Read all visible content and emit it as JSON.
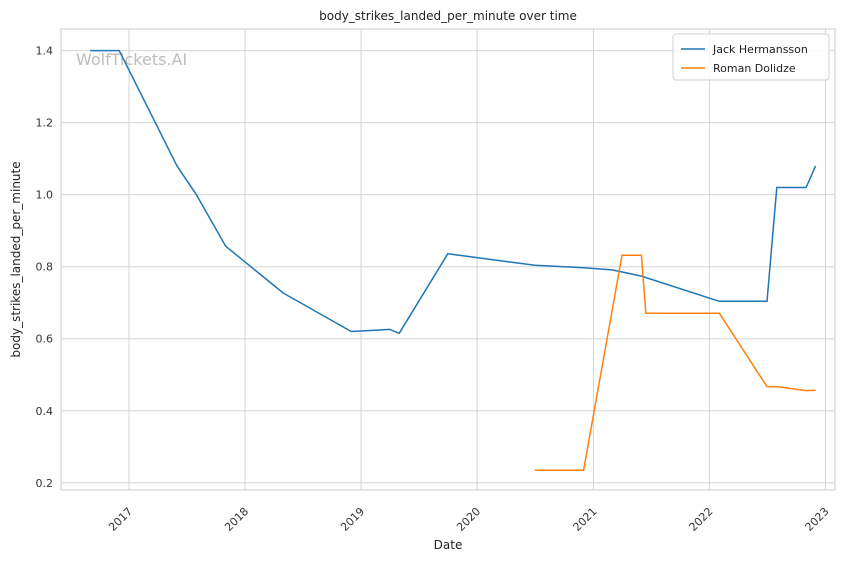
{
  "chart_data": {
    "type": "line",
    "title": "body_strikes_landed_per_minute over time",
    "xlabel": "Date",
    "ylabel": "body_strikes_landed_per_minute",
    "watermark": "WolfTickets.AI",
    "x_axis": "date",
    "xlim": [
      "2016-06-01",
      "2023-01-31"
    ],
    "ylim": [
      0.18,
      1.46
    ],
    "x_ticks": [
      "2017",
      "2018",
      "2019",
      "2020",
      "2021",
      "2022",
      "2023"
    ],
    "y_ticks": [
      "0.2",
      "0.4",
      "0.6",
      "0.8",
      "1.0",
      "1.2",
      "1.4"
    ],
    "grid": true,
    "legend_position": "top-right",
    "series": [
      {
        "name": "Jack Hermansson",
        "color": "#1f77b4",
        "points": [
          [
            "2016-09-01",
            1.4
          ],
          [
            "2016-12-01",
            1.4
          ],
          [
            "2017-06-01",
            1.08
          ],
          [
            "2017-08-01",
            1.0
          ],
          [
            "2017-11-01",
            0.857
          ],
          [
            "2018-05-01",
            0.727
          ],
          [
            "2018-12-01",
            0.62
          ],
          [
            "2019-04-01",
            0.626
          ],
          [
            "2019-05-01",
            0.615
          ],
          [
            "2019-10-01",
            0.836
          ],
          [
            "2020-07-01",
            0.804
          ],
          [
            "2020-12-01",
            0.797
          ],
          [
            "2021-03-01",
            0.791
          ],
          [
            "2021-06-01",
            0.774
          ],
          [
            "2022-02-01",
            0.704
          ],
          [
            "2022-07-01",
            0.704
          ],
          [
            "2022-08-01",
            1.02
          ],
          [
            "2022-11-01",
            1.02
          ],
          [
            "2022-12-01",
            1.08
          ]
        ]
      },
      {
        "name": "Roman Dolidze",
        "color": "#ff7f0e",
        "points": [
          [
            "2020-07-01",
            0.235
          ],
          [
            "2020-12-01",
            0.235
          ],
          [
            "2021-04-01",
            0.832
          ],
          [
            "2021-06-01",
            0.832
          ],
          [
            "2021-06-15",
            0.671
          ],
          [
            "2022-02-01",
            0.671
          ],
          [
            "2022-07-01",
            0.467
          ],
          [
            "2022-08-01",
            0.467
          ],
          [
            "2022-11-01",
            0.456
          ],
          [
            "2022-12-01",
            0.457
          ]
        ]
      }
    ]
  }
}
